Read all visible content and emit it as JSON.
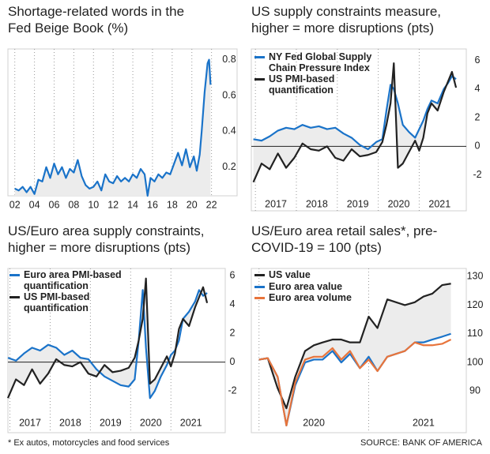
{
  "chart_data": [
    {
      "type": "line",
      "title": "Shortage-related words in the Fed Beige Book (%)",
      "x": [
        2002.0,
        2002.4,
        2002.8,
        2003.2,
        2003.6,
        2004.0,
        2004.4,
        2004.8,
        2005.2,
        2005.6,
        2006.0,
        2006.4,
        2006.8,
        2007.2,
        2007.6,
        2008.0,
        2008.4,
        2008.8,
        2009.2,
        2009.6,
        2010.0,
        2010.4,
        2010.8,
        2011.2,
        2011.6,
        2012.0,
        2012.4,
        2012.8,
        2013.2,
        2013.6,
        2014.0,
        2014.4,
        2014.8,
        2015.2,
        2015.5,
        2015.8,
        2016.2,
        2016.6,
        2017.0,
        2017.4,
        2017.8,
        2018.2,
        2018.6,
        2019.0,
        2019.4,
        2019.8,
        2020.2,
        2020.5,
        2020.8,
        2021.0,
        2021.3,
        2021.6,
        2021.75,
        2021.9
      ],
      "series": [
        {
          "name": "Shortage-related words",
          "color": "#1a73c9",
          "values": [
            0.08,
            0.07,
            0.09,
            0.06,
            0.09,
            0.05,
            0.13,
            0.12,
            0.2,
            0.14,
            0.22,
            0.16,
            0.2,
            0.14,
            0.19,
            0.17,
            0.24,
            0.15,
            0.1,
            0.08,
            0.09,
            0.12,
            0.07,
            0.16,
            0.12,
            0.11,
            0.15,
            0.12,
            0.14,
            0.12,
            0.16,
            0.14,
            0.19,
            0.16,
            0.04,
            0.14,
            0.12,
            0.16,
            0.14,
            0.17,
            0.16,
            0.22,
            0.28,
            0.21,
            0.3,
            0.2,
            0.26,
            0.18,
            0.27,
            0.4,
            0.62,
            0.78,
            0.8,
            0.66
          ]
        }
      ],
      "fill": "area",
      "fill_color": "#ececec",
      "xlim": [
        2001.3,
        2024.6
      ],
      "ylim": [
        0.04,
        0.86
      ],
      "xticks": [
        {
          "value": 2002,
          "label": "02"
        },
        {
          "value": 2004,
          "label": "04"
        },
        {
          "value": 2006,
          "label": "06"
        },
        {
          "value": 2008,
          "label": "08"
        },
        {
          "value": 2010,
          "label": "10"
        },
        {
          "value": 2012,
          "label": "12"
        },
        {
          "value": 2014,
          "label": "14"
        },
        {
          "value": 2016,
          "label": "16"
        },
        {
          "value": 2018,
          "label": "18"
        },
        {
          "value": 2020,
          "label": "20"
        },
        {
          "value": 2022,
          "label": "22"
        }
      ],
      "yticks": [
        0.2,
        0.4,
        0.6,
        0.8
      ]
    },
    {
      "type": "line",
      "title": "US supply constraints measure, higher = more disruptions (pts)",
      "x": [
        2016.95,
        2017.15,
        2017.35,
        2017.55,
        2017.75,
        2017.95,
        2018.15,
        2018.35,
        2018.55,
        2018.75,
        2018.95,
        2019.15,
        2019.35,
        2019.55,
        2019.75,
        2019.95,
        2020.1,
        2020.2,
        2020.3,
        2020.38,
        2020.48,
        2020.6,
        2020.75,
        2020.9,
        2021.0,
        2021.1,
        2021.2,
        2021.3,
        2021.45,
        2021.6,
        2021.7,
        2021.8,
        2021.9
      ],
      "series": [
        {
          "name": "NY Fed Global Supply Chain Pressure Index",
          "color": "#1a73c9",
          "values": [
            0.5,
            0.4,
            0.7,
            1.1,
            1.3,
            1.2,
            1.5,
            1.3,
            1.4,
            1.2,
            1.3,
            0.9,
            0.6,
            0.1,
            -0.2,
            0.3,
            0.5,
            2.5,
            4.3,
            4.0,
            3.0,
            1.5,
            1.0,
            0.6,
            1.2,
            1.8,
            2.6,
            3.2,
            3.0,
            4.0,
            4.4,
            4.9,
            4.7
          ]
        },
        {
          "name": "US PMI-based quantification",
          "color": "#222222",
          "values": [
            -2.5,
            -1.2,
            -1.6,
            -0.5,
            -1.5,
            -0.8,
            0.2,
            -0.2,
            -0.3,
            0.0,
            -0.8,
            -1.0,
            -0.2,
            -0.7,
            -0.6,
            -0.4,
            0.3,
            1.5,
            3.0,
            5.8,
            -1.5,
            -1.2,
            -0.4,
            0.4,
            -0.3,
            0.6,
            2.3,
            3.0,
            2.5,
            3.8,
            4.5,
            5.2,
            4.1
          ]
        }
      ],
      "fill": "between",
      "fill_color": "#ececec",
      "legend": "upper left",
      "xlim": [
        2016.9,
        2022.15
      ],
      "ylim": [
        -4.5,
        6.8
      ],
      "xticks": [
        2017,
        2018,
        2019,
        2020,
        2021
      ],
      "yticks": [
        6,
        4,
        2,
        0,
        -2
      ]
    },
    {
      "type": "line",
      "title": "US/Euro area supply constraints, higher = more disruptions (pts)",
      "x": [
        2016.95,
        2017.15,
        2017.35,
        2017.55,
        2017.75,
        2017.95,
        2018.15,
        2018.35,
        2018.55,
        2018.75,
        2018.95,
        2019.15,
        2019.35,
        2019.55,
        2019.75,
        2019.95,
        2020.1,
        2020.2,
        2020.3,
        2020.38,
        2020.48,
        2020.6,
        2020.75,
        2020.9,
        2021.0,
        2021.1,
        2021.2,
        2021.3,
        2021.45,
        2021.6,
        2021.7,
        2021.8,
        2021.9
      ],
      "series": [
        {
          "name": "Euro area PMI-based quantification",
          "color": "#1a73c9",
          "values": [
            0.3,
            0.1,
            0.6,
            1.0,
            0.8,
            1.2,
            1.0,
            0.5,
            0.8,
            0.3,
            0.2,
            -0.5,
            -1.0,
            -1.3,
            -1.6,
            -1.7,
            -1.2,
            1.5,
            5.0,
            1.0,
            -2.5,
            -2.0,
            -1.0,
            -0.2,
            0.5,
            0.8,
            1.5,
            3.0,
            3.5,
            4.2,
            5.0,
            4.6,
            4.8
          ]
        },
        {
          "name": "US PMI-based quantification",
          "color": "#222222",
          "values": [
            -2.5,
            -1.2,
            -1.6,
            -0.5,
            -1.5,
            -0.8,
            0.2,
            -0.2,
            -0.3,
            0.0,
            -0.8,
            -1.0,
            -0.2,
            -0.7,
            -0.6,
            -0.4,
            0.3,
            1.5,
            3.0,
            5.8,
            -1.5,
            -1.2,
            -0.4,
            0.4,
            -0.3,
            0.6,
            2.3,
            3.0,
            2.5,
            3.8,
            4.5,
            5.2,
            4.1
          ]
        }
      ],
      "fill": "between",
      "fill_color": "#ececec",
      "legend": "upper left",
      "xlim": [
        2016.95,
        2022.35
      ],
      "ylim": [
        -4.9,
        6.5
      ],
      "xticks": [
        2017,
        2018,
        2019,
        2020,
        2021
      ],
      "yticks": [
        6,
        4,
        2,
        0,
        -2
      ]
    },
    {
      "type": "line",
      "title": "US/Euro area retail sales*, pre-COVID-19 = 100 (pts)",
      "x": [
        2020,
        2020.08,
        2020.17,
        2020.25,
        2020.33,
        2020.42,
        2020.5,
        2020.58,
        2020.67,
        2020.75,
        2020.83,
        2020.92,
        2021,
        2021.08,
        2021.17,
        2021.25,
        2021.33,
        2021.42,
        2021.5,
        2021.58,
        2021.67,
        2021.75
      ],
      "series": [
        {
          "name": "US value",
          "color": "#222222",
          "values": [
            101,
            101.5,
            91,
            84,
            95,
            104,
            106,
            107,
            108,
            108,
            107,
            107,
            116,
            112,
            122,
            121,
            120,
            121,
            123,
            124,
            127,
            127.5
          ]
        },
        {
          "name": "Euro area value",
          "color": "#1a73c9",
          "values": [
            101,
            101.5,
            95,
            78,
            92,
            100,
            101,
            101,
            104,
            100,
            103,
            98,
            102,
            97,
            102,
            103,
            104,
            107,
            107,
            108,
            109,
            110
          ]
        },
        {
          "name": "Euro area volume",
          "color": "#e8743b",
          "values": [
            101,
            101.5,
            95,
            78,
            93,
            101,
            102,
            102,
            105,
            101,
            104,
            98,
            101,
            97,
            102,
            103,
            104,
            107,
            106,
            106,
            106.5,
            108
          ]
        }
      ],
      "fill": "between",
      "fill_color": "#ececec",
      "legend": "upper left",
      "xlim": [
        2019.93,
        2021.89
      ],
      "ylim": [
        75.5,
        132.8
      ],
      "xticks": [
        2020,
        2021
      ],
      "yticks": [
        130,
        120,
        110,
        100,
        90
      ]
    }
  ],
  "footnote": "* Ex autos, motorcycles and food services",
  "source": "SOURCE: BANK OF AMERICA"
}
